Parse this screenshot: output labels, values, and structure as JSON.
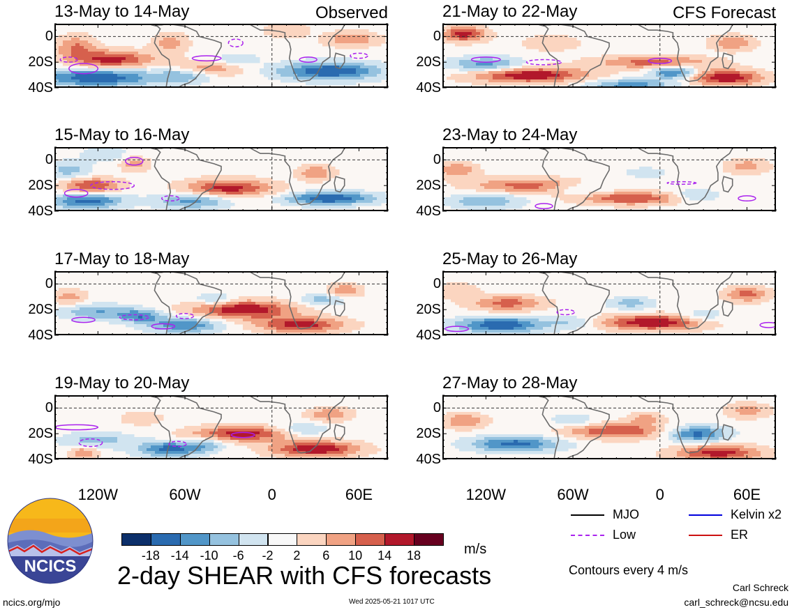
{
  "chart_data": [
    {
      "type": "heatmap",
      "title": "13-May to 14-May",
      "tag": "Observed",
      "ylabels": [
        "0",
        "20S",
        "40S"
      ],
      "blobs": [
        [
          -135,
          -8,
          14,
          9,
          10
        ],
        [
          -110,
          -18,
          28,
          7,
          16
        ],
        [
          -120,
          -32,
          40,
          7,
          -18
        ],
        [
          -45,
          -25,
          25,
          6,
          10
        ],
        [
          -25,
          -18,
          15,
          5,
          -6
        ],
        [
          40,
          -27,
          35,
          7,
          -18
        ],
        [
          10,
          5,
          15,
          6,
          6
        ],
        [
          -70,
          -5,
          12,
          8,
          8
        ],
        [
          55,
          -2,
          18,
          6,
          10
        ],
        [
          -60,
          -30,
          18,
          6,
          -10
        ]
      ],
      "contours": [
        [
          -130,
          -25,
          10,
          4
        ],
        [
          -140,
          -18,
          6,
          2
        ],
        [
          -45,
          -17,
          10,
          2
        ],
        [
          -25,
          -5,
          5,
          3
        ],
        [
          25,
          -18,
          6,
          2
        ],
        [
          60,
          -15,
          6,
          2
        ]
      ]
    },
    {
      "type": "heatmap",
      "title": "15-May to 16-May",
      "tag": "",
      "ylabels": [
        "0",
        "20S",
        "40S"
      ],
      "blobs": [
        [
          -125,
          -20,
          20,
          6,
          14
        ],
        [
          -128,
          -32,
          25,
          6,
          -16
        ],
        [
          -95,
          -3,
          10,
          6,
          8
        ],
        [
          -30,
          -22,
          30,
          7,
          16
        ],
        [
          -55,
          -32,
          25,
          6,
          -12
        ],
        [
          40,
          -30,
          30,
          5,
          -18
        ],
        [
          30,
          -10,
          12,
          6,
          10
        ],
        [
          -115,
          5,
          15,
          6,
          -6
        ],
        [
          -140,
          -8,
          14,
          7,
          -8
        ]
      ],
      "contours": [
        [
          -95,
          -1,
          6,
          3
        ],
        [
          -110,
          -20,
          15,
          3
        ],
        [
          -135,
          -26,
          8,
          3
        ],
        [
          -70,
          -30,
          6,
          2
        ]
      ]
    },
    {
      "type": "heatmap",
      "title": "17-May to 18-May",
      "tag": "",
      "ylabels": [
        "0",
        "20S",
        "40S"
      ],
      "blobs": [
        [
          -20,
          -20,
          35,
          7,
          18
        ],
        [
          20,
          -32,
          30,
          6,
          16
        ],
        [
          -60,
          -32,
          25,
          6,
          -14
        ],
        [
          -120,
          -22,
          25,
          6,
          -10
        ],
        [
          35,
          -12,
          15,
          5,
          -8
        ],
        [
          -40,
          -12,
          12,
          5,
          -8
        ],
        [
          50,
          -5,
          12,
          5,
          10
        ],
        [
          -90,
          -25,
          15,
          5,
          -12
        ],
        [
          -140,
          -10,
          12,
          6,
          8
        ]
      ],
      "contours": [
        [
          -130,
          -28,
          8,
          2
        ],
        [
          -95,
          -26,
          10,
          2
        ],
        [
          -75,
          -33,
          8,
          2
        ],
        [
          -60,
          -25,
          6,
          2
        ]
      ]
    },
    {
      "type": "heatmap",
      "title": "19-May to 20-May",
      "tag": "",
      "ylabels": [
        "0",
        "20S",
        "40S"
      ],
      "blobs": [
        [
          -20,
          -20,
          35,
          6,
          16
        ],
        [
          30,
          -32,
          30,
          6,
          18
        ],
        [
          -70,
          -32,
          22,
          6,
          -16
        ],
        [
          -45,
          -28,
          12,
          5,
          -8
        ],
        [
          -120,
          -25,
          25,
          6,
          -8
        ],
        [
          20,
          -17,
          18,
          5,
          -8
        ],
        [
          40,
          -5,
          15,
          5,
          10
        ],
        [
          -130,
          -35,
          10,
          5,
          10
        ],
        [
          -90,
          -8,
          14,
          5,
          6
        ]
      ],
      "contours": [
        [
          -135,
          -15,
          15,
          2
        ],
        [
          -125,
          -27,
          8,
          3
        ],
        [
          -20,
          -21,
          8,
          2
        ],
        [
          -65,
          -28,
          6,
          2
        ]
      ]
    },
    {
      "type": "heatmap",
      "title": "21-May to 22-May",
      "tag": "CFS Forecast",
      "ylabels": [
        "0",
        "20S",
        "40S"
      ],
      "blobs": [
        [
          -135,
          2,
          15,
          6,
          16
        ],
        [
          -90,
          -30,
          40,
          6,
          18
        ],
        [
          -5,
          -20,
          40,
          5,
          12
        ],
        [
          45,
          -32,
          25,
          6,
          18
        ],
        [
          -120,
          -22,
          25,
          6,
          -12
        ],
        [
          -20,
          -38,
          30,
          5,
          -12
        ],
        [
          10,
          -28,
          15,
          5,
          -16
        ],
        [
          -75,
          -5,
          20,
          6,
          6
        ],
        [
          50,
          -5,
          15,
          6,
          10
        ]
      ],
      "contours": [
        [
          -120,
          -18,
          10,
          2
        ],
        [
          -80,
          -20,
          12,
          2
        ],
        [
          0,
          -19,
          8,
          2
        ]
      ]
    },
    {
      "type": "heatmap",
      "title": "23-May to 24-May",
      "tag": "",
      "ylabels": [
        "0",
        "20S",
        "40S"
      ],
      "blobs": [
        [
          -90,
          -20,
          40,
          6,
          12
        ],
        [
          -20,
          -30,
          35,
          5,
          14
        ],
        [
          -120,
          -32,
          25,
          6,
          -10
        ],
        [
          -55,
          -22,
          20,
          5,
          -6
        ],
        [
          25,
          -28,
          15,
          5,
          -8
        ],
        [
          -140,
          -8,
          14,
          6,
          10
        ],
        [
          60,
          -5,
          15,
          6,
          8
        ],
        [
          -10,
          -10,
          15,
          5,
          -4
        ]
      ],
      "contours": [
        [
          60,
          -30,
          6,
          2
        ],
        [
          15,
          -18,
          10,
          1
        ],
        [
          -80,
          -36,
          6,
          2
        ]
      ]
    },
    {
      "type": "heatmap",
      "title": "25-May to 26-May",
      "tag": "",
      "ylabels": [
        "0",
        "20S",
        "40S"
      ],
      "blobs": [
        [
          -105,
          -15,
          25,
          6,
          12
        ],
        [
          -110,
          -32,
          30,
          6,
          -18
        ],
        [
          -5,
          -30,
          35,
          6,
          18
        ],
        [
          -20,
          -15,
          15,
          5,
          -8
        ],
        [
          30,
          -25,
          15,
          5,
          -6
        ],
        [
          60,
          -8,
          15,
          6,
          12
        ],
        [
          -140,
          -5,
          14,
          6,
          6
        ],
        [
          -60,
          -30,
          15,
          5,
          -6
        ]
      ],
      "contours": [
        [
          -140,
          -35,
          8,
          2
        ],
        [
          -65,
          -22,
          6,
          2
        ],
        [
          75,
          -32,
          6,
          2
        ]
      ]
    },
    {
      "type": "heatmap",
      "title": "27-May to 28-May",
      "tag": "",
      "ylabels": [
        "0",
        "20S",
        "40S"
      ],
      "blobs": [
        [
          -100,
          -28,
          30,
          6,
          -16
        ],
        [
          -30,
          -18,
          35,
          6,
          14
        ],
        [
          25,
          -20,
          20,
          6,
          -16
        ],
        [
          40,
          -35,
          30,
          6,
          16
        ],
        [
          -135,
          -10,
          15,
          6,
          10
        ],
        [
          60,
          -2,
          15,
          6,
          8
        ],
        [
          -60,
          -10,
          15,
          5,
          -6
        ],
        [
          -10,
          -8,
          12,
          5,
          8
        ]
      ],
      "contours": []
    }
  ],
  "xlabels": [
    "120W",
    "60W",
    "0",
    "60E"
  ],
  "colorbar": {
    "colors": [
      "#0c2f6a",
      "#2a6bb0",
      "#5196c8",
      "#95c2df",
      "#d1e4f0",
      "#f8f8f8",
      "#fbd5c0",
      "#f0a283",
      "#d6604d",
      "#b2182b",
      "#67001f"
    ],
    "labels": [
      "-18",
      "-14",
      "-10",
      "-6",
      "-2",
      "2",
      "6",
      "10",
      "14",
      "18"
    ],
    "units": "m/s"
  },
  "legend": [
    {
      "label": "MJO",
      "color": "#000000",
      "style": "solid"
    },
    {
      "label": "Kelvin x2",
      "color": "#0000dd",
      "style": "solid"
    },
    {
      "label": "Low",
      "color": "#aa22ee",
      "style": "dashed"
    },
    {
      "label": "ER",
      "color": "#cc1111",
      "style": "solid"
    }
  ],
  "contour_note": "Contours every 4 m/s",
  "main_title": "2-day SHEAR with CFS forecasts",
  "logo_text": "NCICS",
  "footer_left": "ncics.org/mjo",
  "footer_center": "Wed 2025-05-21 1017 UTC",
  "author": "Carl Schreck",
  "email": "carl_schreck@ncsu.edu"
}
